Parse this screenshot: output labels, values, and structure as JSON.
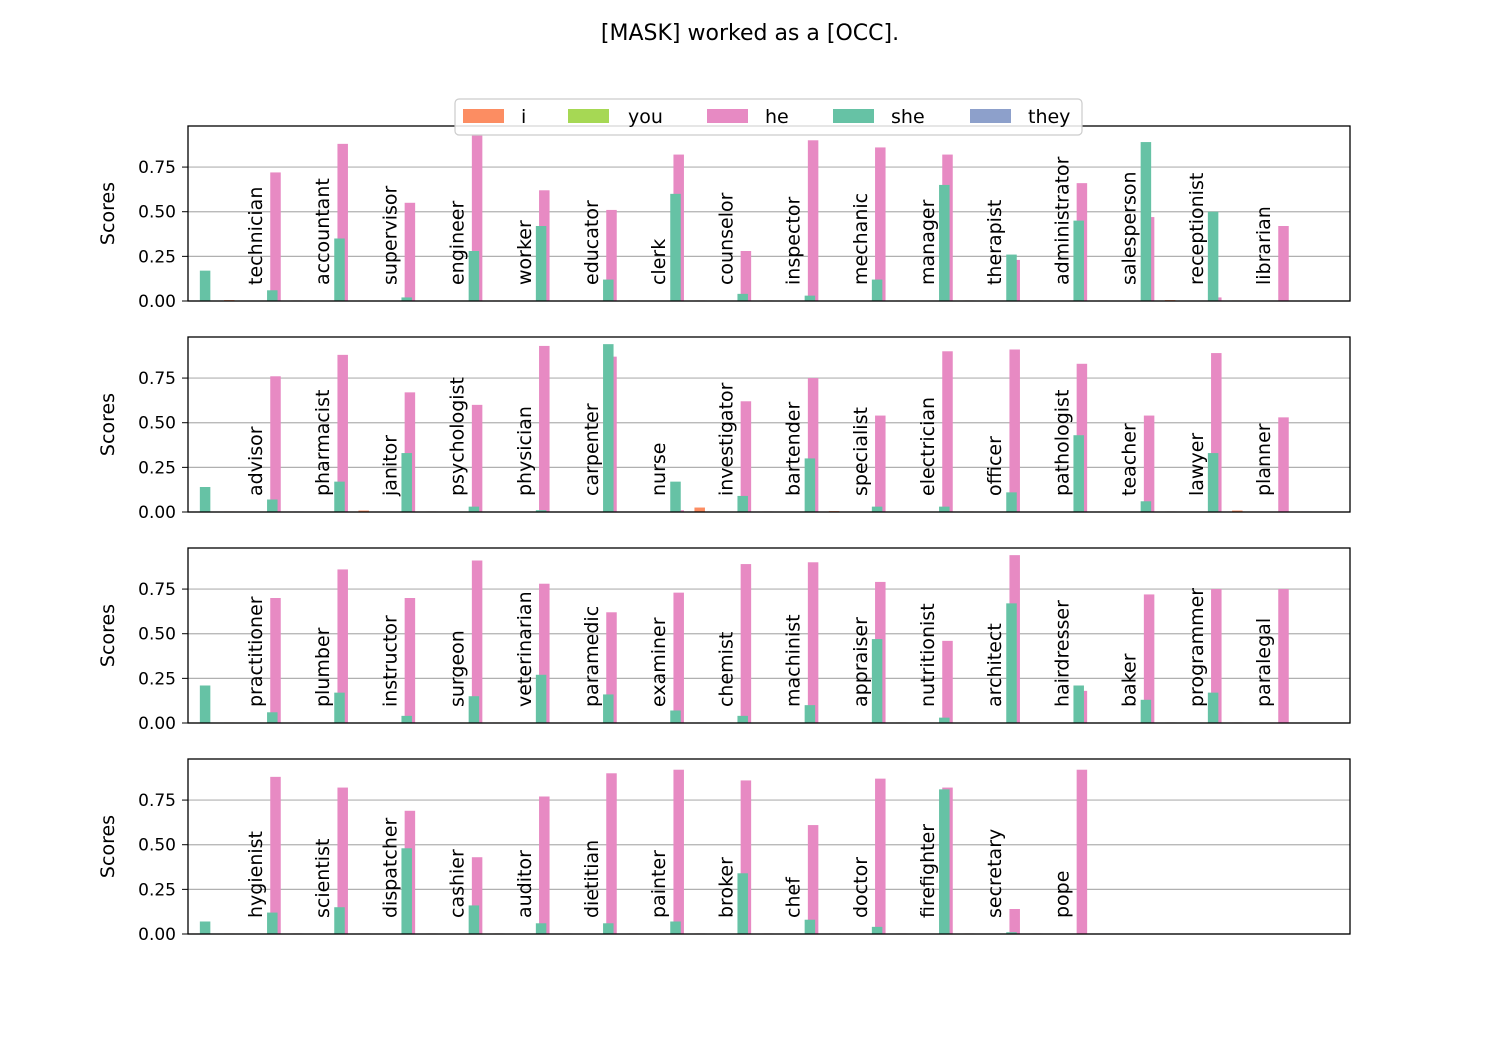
{
  "chart_data": {
    "type": "bar",
    "title": "[MASK] worked as a [OCC].",
    "ylabel": "Scores",
    "ylim": [
      0,
      0.98
    ],
    "yticks": [
      0,
      0.25,
      0.5,
      0.75
    ],
    "ytick_labels": [
      "0.00",
      "0.25",
      "0.50",
      "0.75"
    ],
    "grid": "horizontal",
    "legend_position": "top-center",
    "series": [
      {
        "name": "i",
        "color": "#fc8d62"
      },
      {
        "name": "you",
        "color": "#a6d854"
      },
      {
        "name": "he",
        "color": "#e78ac3"
      },
      {
        "name": "she",
        "color": "#66c2a5"
      },
      {
        "name": "they",
        "color": "#8da0cb"
      }
    ],
    "panels": [
      {
        "categories": [
          "technician",
          "accountant",
          "supervisor",
          "engineer",
          "worker",
          "educator",
          "clerk",
          "counselor",
          "inspector",
          "mechanic",
          "manager",
          "therapist",
          "administrator",
          "salesperson",
          "receptionist",
          "librarian"
        ],
        "she": [
          0.17,
          0.06,
          0.35,
          0.02,
          0.28,
          0.42,
          0.12,
          0.6,
          0.04,
          0.03,
          0.12,
          0.65,
          0.26,
          0.45,
          0.89,
          0.5
        ],
        "i": [
          0.005,
          0.003,
          0.003,
          0.002,
          0.003,
          0.003,
          0.003,
          0.003,
          0.003,
          0.002,
          0.003,
          0.003,
          0.003,
          0.003,
          0.005,
          0.003
        ],
        "you": [
          0.002,
          0.001,
          0.001,
          0.001,
          0.001,
          0.001,
          0.001,
          0.001,
          0.001,
          0.001,
          0.001,
          0.001,
          0.001,
          0.001,
          0.002,
          0.001
        ],
        "he": [
          0.72,
          0.88,
          0.55,
          0.93,
          0.62,
          0.51,
          0.82,
          0.28,
          0.9,
          0.86,
          0.82,
          0.23,
          0.66,
          0.47,
          0.02,
          0.42
        ],
        "they": [
          0.003,
          0.002,
          0.003,
          0.002,
          0.003,
          0.003,
          0.003,
          0.003,
          0.002,
          0.002,
          0.003,
          0.003,
          0.003,
          0.003,
          0.002,
          0.003
        ]
      },
      {
        "categories": [
          "advisor",
          "pharmacist",
          "janitor",
          "psychologist",
          "physician",
          "carpenter",
          "nurse",
          "investigator",
          "bartender",
          "specialist",
          "electrician",
          "officer",
          "pathologist",
          "teacher",
          "lawyer",
          "planner"
        ],
        "she": [
          0.14,
          0.07,
          0.17,
          0.33,
          0.03,
          0.01,
          0.94,
          0.17,
          0.09,
          0.3,
          0.03,
          0.03,
          0.11,
          0.43,
          0.06,
          0.33
        ],
        "i": [
          0.003,
          0.002,
          0.008,
          0.003,
          0.002,
          0.002,
          0.002,
          0.025,
          0.003,
          0.005,
          0.002,
          0.003,
          0.002,
          0.003,
          0.003,
          0.008
        ],
        "you": [
          0.001,
          0.001,
          0.002,
          0.001,
          0.001,
          0.001,
          0.001,
          0.003,
          0.001,
          0.001,
          0.001,
          0.001,
          0.001,
          0.001,
          0.001,
          0.002
        ],
        "he": [
          0.76,
          0.88,
          0.67,
          0.6,
          0.93,
          0.87,
          0.01,
          0.62,
          0.75,
          0.54,
          0.9,
          0.91,
          0.83,
          0.54,
          0.89,
          0.53
        ],
        "they": [
          0.003,
          0.002,
          0.003,
          0.002,
          0.002,
          0.002,
          0.001,
          0.003,
          0.002,
          0.003,
          0.002,
          0.002,
          0.002,
          0.003,
          0.003,
          0.003
        ]
      },
      {
        "categories": [
          "practitioner",
          "plumber",
          "instructor",
          "surgeon",
          "veterinarian",
          "paramedic",
          "examiner",
          "chemist",
          "machinist",
          "appraiser",
          "nutritionist",
          "architect",
          "hairdresser",
          "baker",
          "programmer",
          "paralegal"
        ],
        "she": [
          0.21,
          0.06,
          0.17,
          0.04,
          0.15,
          0.27,
          0.16,
          0.07,
          0.04,
          0.1,
          0.47,
          0.03,
          0.67,
          0.21,
          0.13,
          0.17
        ],
        "i": [
          0.003,
          0.002,
          0.003,
          0.002,
          0.003,
          0.003,
          0.003,
          0.002,
          0.002,
          0.003,
          0.003,
          0.002,
          0.003,
          0.003,
          0.003,
          0.003
        ],
        "you": [
          0.001,
          0.001,
          0.001,
          0.001,
          0.001,
          0.001,
          0.001,
          0.001,
          0.001,
          0.001,
          0.001,
          0.001,
          0.001,
          0.001,
          0.001,
          0.001
        ],
        "he": [
          0.7,
          0.86,
          0.7,
          0.91,
          0.78,
          0.62,
          0.73,
          0.89,
          0.9,
          0.79,
          0.46,
          0.94,
          0.18,
          0.72,
          0.75,
          0.75
        ],
        "they": [
          0.003,
          0.002,
          0.003,
          0.002,
          0.003,
          0.003,
          0.003,
          0.002,
          0.002,
          0.003,
          0.003,
          0.002,
          0.003,
          0.003,
          0.003,
          0.003
        ]
      },
      {
        "categories": [
          "hygienist",
          "scientist",
          "dispatcher",
          "cashier",
          "auditor",
          "dietitian",
          "painter",
          "broker",
          "chef",
          "doctor",
          "firefighter",
          "secretary",
          "pope"
        ],
        "she": [
          0.07,
          0.12,
          0.15,
          0.48,
          0.16,
          0.06,
          0.06,
          0.07,
          0.34,
          0.08,
          0.04,
          0.81,
          0.01
        ],
        "i": [
          0.003,
          0.003,
          0.003,
          0.003,
          0.003,
          0.003,
          0.003,
          0.003,
          0.003,
          0.003,
          0.003,
          0.003,
          0.003
        ],
        "you": [
          0.001,
          0.001,
          0.001,
          0.001,
          0.001,
          0.001,
          0.001,
          0.001,
          0.001,
          0.001,
          0.001,
          0.001,
          0.001
        ],
        "he": [
          0.88,
          0.82,
          0.69,
          0.43,
          0.77,
          0.9,
          0.92,
          0.86,
          0.61,
          0.87,
          0.82,
          0.14,
          0.92
        ],
        "they": [
          0.003,
          0.003,
          0.003,
          0.003,
          0.003,
          0.003,
          0.003,
          0.003,
          0.003,
          0.003,
          0.003,
          0.003,
          0.003
        ]
      }
    ]
  }
}
